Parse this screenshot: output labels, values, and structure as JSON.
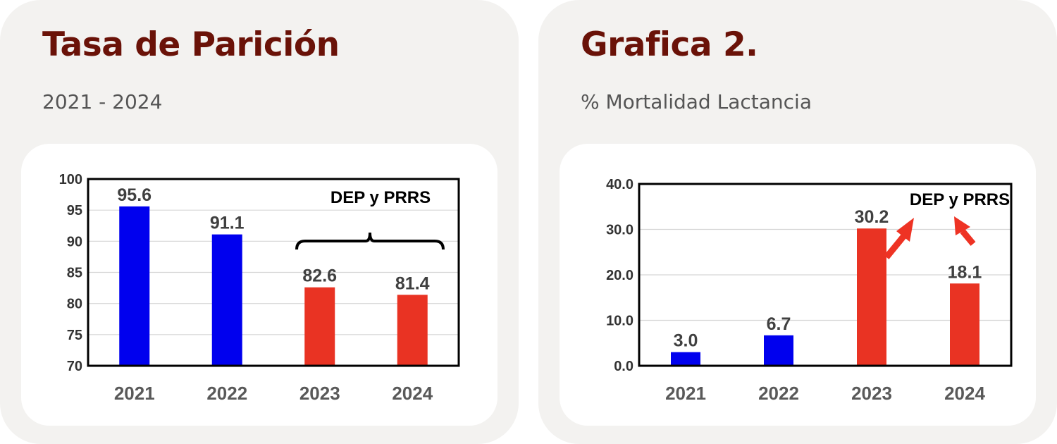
{
  "left_panel": {
    "title": "Tasa de Parición",
    "subtitle": "2021 - 2024"
  },
  "right_panel": {
    "title": "Grafica 2.",
    "subtitle": "% Mortalidad Lactancia"
  },
  "colors": {
    "panel_bg": "#f3f2f0",
    "title": "#6a1208",
    "bar_blue": "#0000ee",
    "bar_red": "#e93323",
    "arrow_red": "#ee3324"
  },
  "chart_data": [
    {
      "type": "bar",
      "categories": [
        "2021",
        "2022",
        "2023",
        "2024"
      ],
      "values": [
        95.6,
        91.1,
        82.6,
        81.4
      ],
      "value_labels": [
        "95.6",
        "91.1",
        "82.6",
        "81.4"
      ],
      "bar_colors": [
        "blue",
        "blue",
        "red",
        "red"
      ],
      "ylim": [
        70,
        100
      ],
      "yticks": [
        "70",
        "75",
        "80",
        "85",
        "90",
        "95",
        "100"
      ],
      "grid": true,
      "annotation": "DEP y PRRS"
    },
    {
      "type": "bar",
      "categories": [
        "2021",
        "2022",
        "2023",
        "2024"
      ],
      "values": [
        3.0,
        6.7,
        30.2,
        18.1
      ],
      "value_labels": [
        "3.0",
        "6.7",
        "30.2",
        "18.1"
      ],
      "bar_colors": [
        "blue",
        "blue",
        "red",
        "red"
      ],
      "ylim": [
        0,
        40
      ],
      "yticks": [
        "0.0",
        "10.0",
        "20.0",
        "30.0",
        "40.0"
      ],
      "grid": true,
      "annotation": "DEP y PRRS"
    }
  ]
}
